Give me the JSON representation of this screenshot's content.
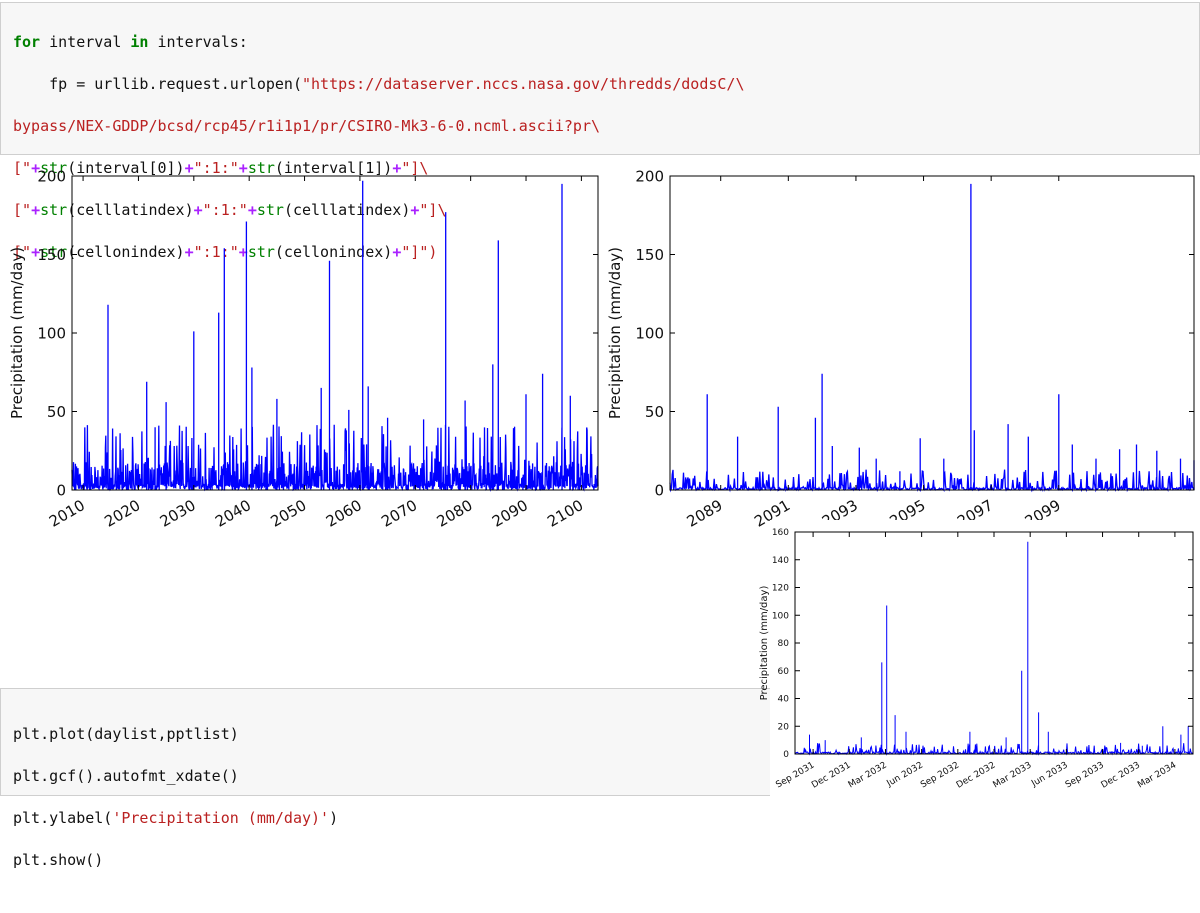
{
  "code_cell_top": {
    "line1": {
      "kw": "for",
      "var": "interval",
      "in": "in",
      "rest": "intervals:"
    },
    "line2": {
      "pre": "    fp = urllib.request.urlopen(",
      "url": "\"https://dataserver.nccs.nasa.gov/thredds/dodsC/\\"
    },
    "line3": {
      "s": "bypass/NEX-GDDP/bcsd/rcp45/r1i1p1/pr/CSIRO-Mk3-6-0.ncml.ascii?pr\\"
    },
    "line4": {
      "a": "[\"",
      "op1": "+",
      "fn1": "str",
      "b": "(interval[0])",
      "op2": "+",
      "c": "\":1:\"",
      "op3": "+",
      "fn2": "str",
      "d": "(interval[1])",
      "op4": "+",
      "e": "\"]\\"
    },
    "line5": {
      "a": "[\"",
      "op1": "+",
      "fn1": "str",
      "b": "(celllatindex)",
      "op2": "+",
      "c": "\":1:\"",
      "op3": "+",
      "fn2": "str",
      "d": "(celllatindex)",
      "op4": "+",
      "e": "\"]\\"
    },
    "line6": {
      "a": "[\"",
      "op1": "+",
      "fn1": "str",
      "b": "(cellonindex)",
      "op2": "+",
      "c": "\":1:\"",
      "op3": "+",
      "fn2": "str",
      "d": "(cellonindex)",
      "op4": "+",
      "e": "\"]\")"
    }
  },
  "code_cell_bottom": {
    "line1": "plt.plot(daylist,pptlist)",
    "line2": "plt.gcf().autofmt_xdate()",
    "line3a": "plt.ylabel(",
    "line3s": "'Precipitation (mm/day)'",
    "line3b": ")",
    "line4": "plt.show()"
  },
  "colors": {
    "line": "#0000ff",
    "keyword": "#008000",
    "string": "#ba2121",
    "operator": "#aa22ff"
  },
  "chart_data": [
    {
      "type": "line",
      "ylabel": "Precipitation (mm/day)",
      "xlim": [
        2008,
        2103
      ],
      "ylim": [
        0,
        200
      ],
      "yticks": [
        0,
        50,
        100,
        150,
        200
      ],
      "xticks": [
        2010,
        2020,
        2030,
        2040,
        2050,
        2060,
        2070,
        2080,
        2090,
        2100
      ],
      "xticklabels": [
        "2010",
        "2020",
        "2030",
        "2040",
        "2050",
        "2060",
        "2070",
        "2080",
        "2090",
        "2100"
      ],
      "peaks": [
        [
          2014.5,
          118
        ],
        [
          2021.5,
          69
        ],
        [
          2023,
          40
        ],
        [
          2025,
          56
        ],
        [
          2030,
          101
        ],
        [
          2034.5,
          113
        ],
        [
          2035.5,
          154
        ],
        [
          2039.5,
          171
        ],
        [
          2040.5,
          78
        ],
        [
          2045,
          58
        ],
        [
          2053,
          65
        ],
        [
          2054.5,
          146
        ],
        [
          2058,
          51
        ],
        [
          2060.5,
          197
        ],
        [
          2061.5,
          66
        ],
        [
          2065,
          46
        ],
        [
          2071.5,
          45
        ],
        [
          2075.5,
          177
        ],
        [
          2079,
          57
        ],
        [
          2084,
          80
        ],
        [
          2085,
          159
        ],
        [
          2090,
          61
        ],
        [
          2093,
          74
        ],
        [
          2096.5,
          195
        ],
        [
          2098,
          60
        ]
      ],
      "baseline": 30
    },
    {
      "type": "line",
      "ylabel": "Precipitation (mm/day)",
      "xlim": [
        2087.5,
        2103
      ],
      "ylim": [
        0,
        200
      ],
      "yticks": [
        0,
        50,
        100,
        150,
        200
      ],
      "xticks": [
        2089,
        2091,
        2093,
        2095,
        2097,
        2099
      ],
      "xticklabels": [
        "2089",
        "2091",
        "2093",
        "2095",
        "2097",
        "2099"
      ],
      "peaks": [
        [
          2088.6,
          61
        ],
        [
          2089.5,
          34
        ],
        [
          2090.7,
          53
        ],
        [
          2091.8,
          46
        ],
        [
          2092.0,
          74
        ],
        [
          2092.3,
          28
        ],
        [
          2093.1,
          27
        ],
        [
          2093.6,
          20
        ],
        [
          2094.3,
          12
        ],
        [
          2094.9,
          33
        ],
        [
          2095.6,
          20
        ],
        [
          2096.4,
          195
        ],
        [
          2096.5,
          38
        ],
        [
          2097.5,
          42
        ],
        [
          2098.1,
          34
        ],
        [
          2099.0,
          61
        ],
        [
          2099.4,
          29
        ],
        [
          2100.1,
          20
        ],
        [
          2100.8,
          26
        ],
        [
          2101.3,
          29
        ],
        [
          2101.9,
          25
        ],
        [
          2102.6,
          20
        ],
        [
          2103.0,
          19
        ]
      ],
      "baseline": 10
    },
    {
      "type": "line",
      "ylabel": "Precipitation (mm/day)",
      "xlim": [
        0,
        33
      ],
      "ylim": [
        0,
        160
      ],
      "yticks": [
        0,
        20,
        40,
        60,
        80,
        100,
        120,
        140,
        160
      ],
      "xticks": [
        1.5,
        4.5,
        7.5,
        10.5,
        13.5,
        16.5,
        19.5,
        22.5,
        25.5,
        28.5,
        31.5
      ],
      "xticklabels": [
        "Sep 2031",
        "Dec 2031",
        "Mar 2032",
        "Jun 2032",
        "Sep 2032",
        "Dec 2032",
        "Mar 2033",
        "Jun 2033",
        "Sep 2033",
        "Dec 2033",
        "Mar 2034"
      ],
      "peaks": [
        [
          1.2,
          14
        ],
        [
          2.5,
          10
        ],
        [
          5.5,
          12
        ],
        [
          7.2,
          66
        ],
        [
          7.6,
          107
        ],
        [
          8.3,
          28
        ],
        [
          9.2,
          16
        ],
        [
          14.5,
          16
        ],
        [
          17.5,
          12
        ],
        [
          18.8,
          60
        ],
        [
          19.3,
          153
        ],
        [
          20.2,
          30
        ],
        [
          21.0,
          16
        ],
        [
          27.0,
          8
        ],
        [
          28.8,
          6
        ],
        [
          30.5,
          20
        ],
        [
          32.0,
          14
        ],
        [
          32.6,
          20
        ]
      ],
      "baseline": 6
    }
  ]
}
